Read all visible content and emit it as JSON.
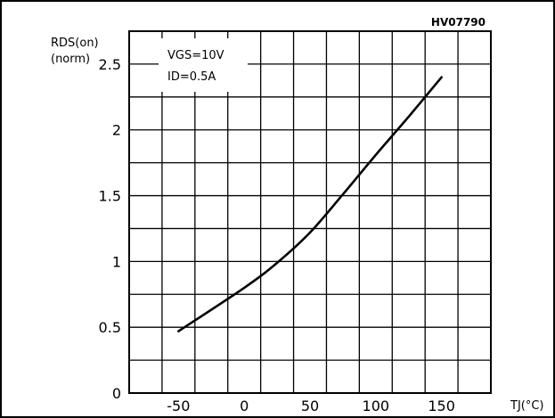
{
  "chart_data": {
    "type": "line",
    "title": "",
    "figure_code": "HV07790",
    "ylabel": {
      "line1": "RDS(on)",
      "line2": "(norm)"
    },
    "xlabel": "TJ(°C)",
    "annotation": {
      "line1": "VGS=10V",
      "line2": "ID=0.5A"
    },
    "xlim": [
      -87.5,
      187.5
    ],
    "ylim": [
      0,
      2.75
    ],
    "x_ticks": [
      {
        "value": -50,
        "label": "-50"
      },
      {
        "value": 0,
        "label": "0"
      },
      {
        "value": 50,
        "label": "50"
      },
      {
        "value": 100,
        "label": "100"
      },
      {
        "value": 150,
        "label": "150"
      }
    ],
    "y_ticks": [
      {
        "value": 0,
        "label": "0"
      },
      {
        "value": 0.5,
        "label": "0.5"
      },
      {
        "value": 1,
        "label": "1"
      },
      {
        "value": 1.5,
        "label": "1.5"
      },
      {
        "value": 2,
        "label": "2"
      },
      {
        "value": 2.5,
        "label": "2.5"
      }
    ],
    "grid": true,
    "series": [
      {
        "x": [
          -50,
          0,
          25,
          50,
          75,
          100,
          125,
          150
        ],
        "y": [
          0.47,
          0.8,
          0.99,
          1.22,
          1.51,
          1.81,
          2.1,
          2.4
        ]
      }
    ]
  }
}
